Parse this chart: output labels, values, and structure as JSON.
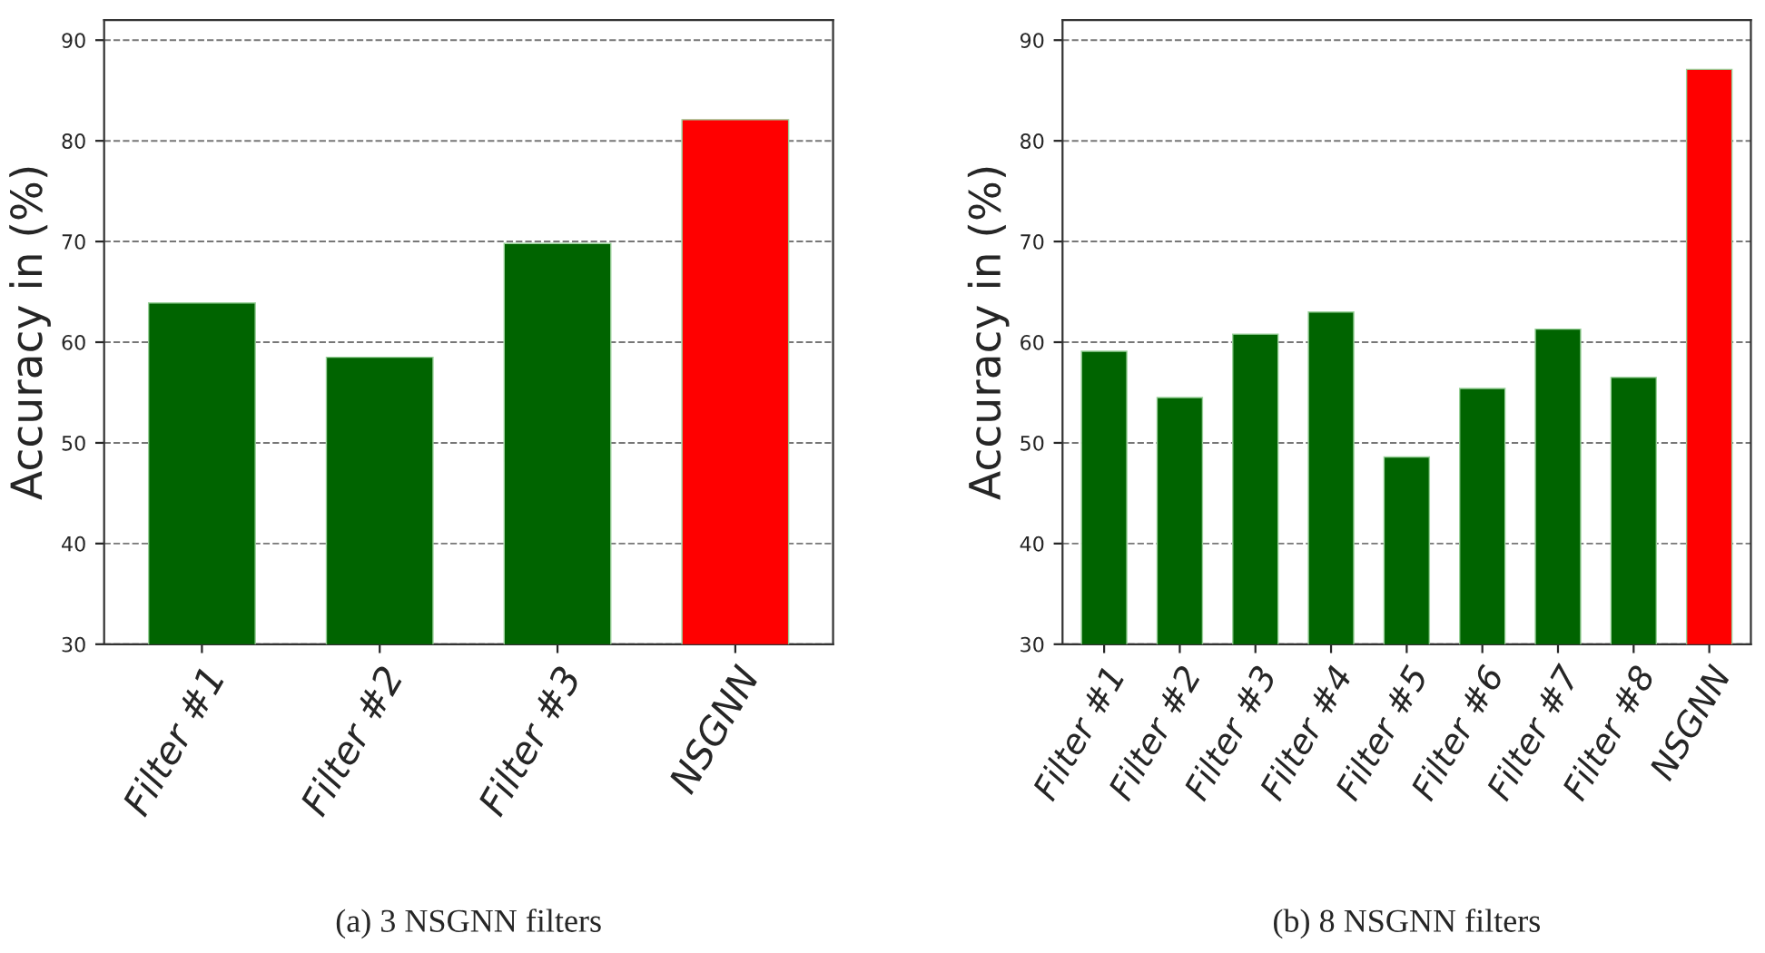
{
  "chart_data": [
    {
      "type": "bar",
      "categories": [
        "Filter #1",
        "Filter #2",
        "Filter #3",
        "NSGNN"
      ],
      "values": [
        63.9,
        58.5,
        69.8,
        82.1
      ],
      "colors": [
        "#006400",
        "#006400",
        "#006400",
        "#ff0000"
      ],
      "ylabel": "Accuracy in (%)",
      "ylim": [
        30,
        92
      ],
      "yticks": [
        30,
        40,
        50,
        60,
        70,
        80,
        90
      ],
      "grid": "y",
      "annotations": [
        "(a) 3 NSGNN filters"
      ]
    },
    {
      "type": "bar",
      "categories": [
        "Filter #1",
        "Filter #2",
        "Filter #3",
        "Filter #4",
        "Filter #5",
        "Filter #6",
        "Filter #7",
        "Filter #8",
        "NSGNN"
      ],
      "values": [
        59.1,
        54.5,
        60.8,
        63.0,
        48.6,
        55.4,
        61.3,
        56.5,
        87.1
      ],
      "colors": [
        "#006400",
        "#006400",
        "#006400",
        "#006400",
        "#006400",
        "#006400",
        "#006400",
        "#006400",
        "#ff0000"
      ],
      "ylabel": "Accuracy in (%)",
      "ylim": [
        30,
        92
      ],
      "yticks": [
        30,
        40,
        50,
        60,
        70,
        80,
        90
      ],
      "grid": "y",
      "annotations": [
        "(b) 8 NSGNN filters"
      ]
    }
  ]
}
